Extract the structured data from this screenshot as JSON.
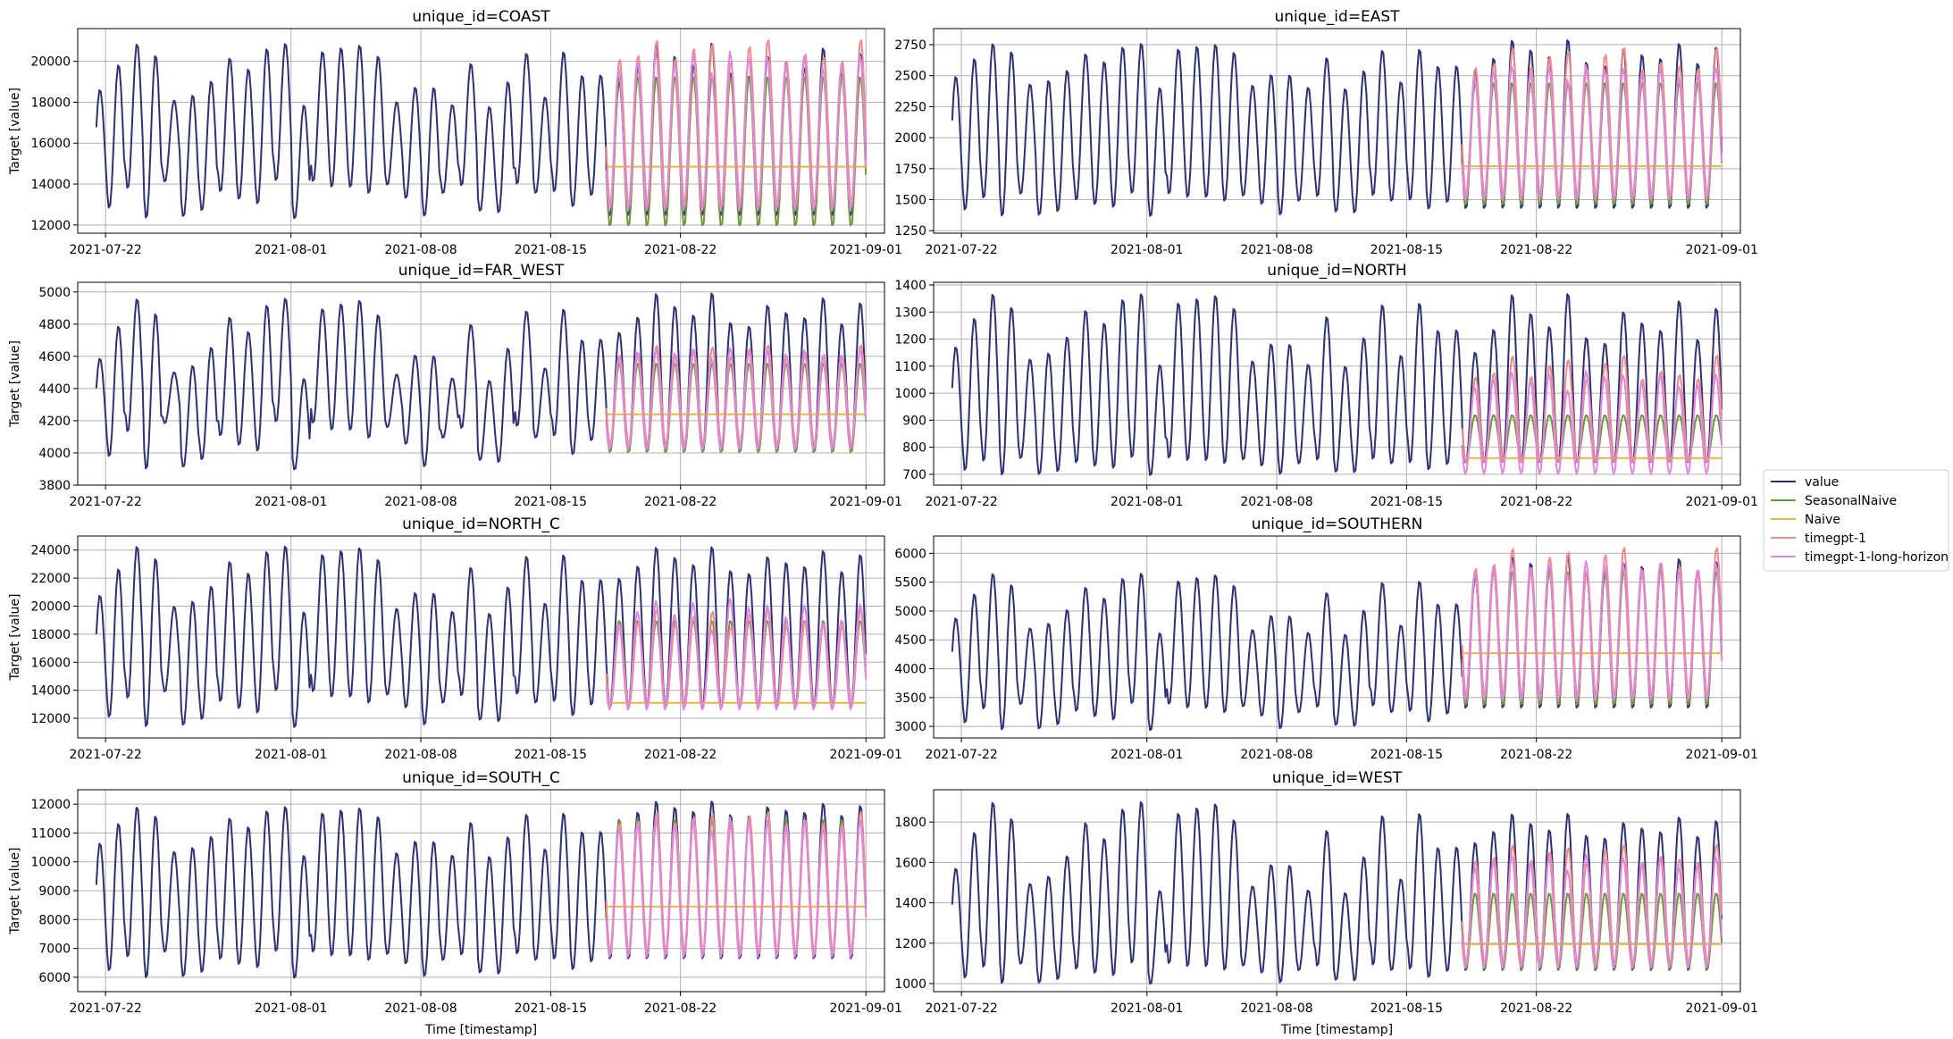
{
  "figure": {
    "xlabel": "Time [timestamp]",
    "ylabel": "Target [value]"
  },
  "legend": {
    "placement": "right",
    "entries": [
      {
        "name": "value",
        "color": "#2e3272"
      },
      {
        "name": "SeasonalNaive",
        "color": "#6e963a"
      },
      {
        "name": "Naive",
        "color": "#e5b842"
      },
      {
        "name": "timegpt-1",
        "color": "#ec8c8c"
      },
      {
        "name": "timegpt-1-long-horizon",
        "color": "#dd88dc"
      }
    ]
  },
  "chart_data": [
    {
      "type": "line",
      "title": "unique_id=COAST",
      "xticks": [
        "2021-07-22",
        "2021-08-01",
        "2021-08-08",
        "2021-08-15",
        "2021-08-22",
        "2021-09-01"
      ],
      "yticks": [
        12000,
        14000,
        16000,
        18000,
        20000
      ],
      "ylim": [
        11600,
        21600
      ],
      "grid": true,
      "history": {
        "start": "2021-07-21",
        "end": "2021-08-18",
        "troughs_range": [
          12200,
          14200
        ],
        "peaks_range": [
          17800,
          21000
        ]
      },
      "forecast": {
        "start": "2021-08-18",
        "end": "2021-09-01",
        "value": {
          "troughs": 12400,
          "peaks_range": [
            19000,
            21100
          ]
        },
        "SeasonalNaive": {
          "troughs": 11900,
          "peaks": 19300
        },
        "Naive": {
          "level": 14850
        },
        "timegpt-1": {
          "troughs": 12900,
          "peaks_range": [
            20000,
            21200
          ]
        },
        "timegpt-1-long-horizon": {
          "troughs": 12700,
          "peaks_range": [
            19300,
            20600
          ]
        }
      }
    },
    {
      "type": "line",
      "title": "unique_id=EAST",
      "xticks": [
        "2021-07-22",
        "2021-08-01",
        "2021-08-08",
        "2021-08-15",
        "2021-08-22",
        "2021-09-01"
      ],
      "yticks": [
        1250,
        1500,
        1750,
        2000,
        2250,
        2500,
        2750
      ],
      "ylim": [
        1230,
        2880
      ],
      "grid": true,
      "history": {
        "start": "2021-07-21",
        "end": "2021-08-18",
        "troughs_range": [
          1350,
          1550
        ],
        "peaks_range": [
          2400,
          2780
        ]
      },
      "forecast": {
        "start": "2021-08-18",
        "end": "2021-09-01",
        "value": {
          "troughs": 1420,
          "peaks_range": [
            2550,
            2820
          ]
        },
        "SeasonalNaive": {
          "troughs": 1450,
          "peaks": 2450
        },
        "Naive": {
          "level": 1770
        },
        "timegpt-1": {
          "troughs": 1520,
          "peaks_range": [
            2550,
            2750
          ]
        },
        "timegpt-1-long-horizon": {
          "troughs": 1500,
          "peaks_range": [
            2450,
            2600
          ]
        }
      }
    },
    {
      "type": "line",
      "title": "unique_id=FAR_WEST",
      "xticks": [
        "2021-07-22",
        "2021-08-01",
        "2021-08-08",
        "2021-08-15",
        "2021-08-22",
        "2021-09-01"
      ],
      "yticks": [
        3800,
        4000,
        4200,
        4400,
        4600,
        4800,
        5000
      ],
      "ylim": [
        3800,
        5060
      ],
      "grid": true,
      "history": {
        "start": "2021-07-21",
        "end": "2021-08-18",
        "troughs_range": [
          3880,
          4200
        ],
        "peaks_range": [
          4450,
          4980
        ]
      },
      "forecast": {
        "start": "2021-08-18",
        "end": "2021-09-01",
        "value": {
          "troughs": 4000,
          "peaks_range": [
            4750,
            5020
          ]
        },
        "SeasonalNaive": {
          "troughs": 4000,
          "peaks": 4560
        },
        "Naive": {
          "level": 4240
        },
        "timegpt-1": {
          "troughs": 4050,
          "peaks_range": [
            4600,
            4680
          ]
        },
        "timegpt-1-long-horizon": {
          "troughs": 4020,
          "peaks_range": [
            4580,
            4660
          ]
        }
      }
    },
    {
      "type": "line",
      "title": "unique_id=NORTH",
      "xticks": [
        "2021-07-22",
        "2021-08-01",
        "2021-08-08",
        "2021-08-15",
        "2021-08-22",
        "2021-09-01"
      ],
      "yticks": [
        700,
        800,
        900,
        1000,
        1100,
        1200,
        1300,
        1400
      ],
      "ylim": [
        660,
        1410
      ],
      "grid": true,
      "history": {
        "start": "2021-07-21",
        "end": "2021-08-18",
        "troughs_range": [
          690,
          760
        ],
        "peaks_range": [
          1100,
          1380
        ]
      },
      "forecast": {
        "start": "2021-08-18",
        "end": "2021-09-01",
        "value": {
          "troughs": 740,
          "peaks_range": [
            1150,
            1390
          ]
        },
        "SeasonalNaive": {
          "troughs": 750,
          "peaks": 920
        },
        "Naive": {
          "level": 760
        },
        "timegpt-1": {
          "troughs": 740,
          "peaks_range": [
            1050,
            1150
          ]
        },
        "timegpt-1-long-horizon": {
          "troughs": 700,
          "peaks_range": [
            1000,
            1090
          ]
        }
      }
    },
    {
      "type": "line",
      "title": "unique_id=NORTH_C",
      "xticks": [
        "2021-07-22",
        "2021-08-01",
        "2021-08-08",
        "2021-08-15",
        "2021-08-22",
        "2021-09-01"
      ],
      "yticks": [
        12000,
        14000,
        16000,
        18000,
        20000,
        22000,
        24000
      ],
      "ylim": [
        10600,
        25000
      ],
      "grid": true,
      "history": {
        "start": "2021-07-21",
        "end": "2021-08-18",
        "troughs_range": [
          11200,
          14000
        ],
        "peaks_range": [
          19500,
          24500
        ]
      },
      "forecast": {
        "start": "2021-08-18",
        "end": "2021-09-01",
        "value": {
          "troughs": 12800,
          "peaks_range": [
            22000,
            24500
          ]
        },
        "SeasonalNaive": {
          "troughs": 12800,
          "peaks": 19000
        },
        "Naive": {
          "level": 13100
        },
        "timegpt-1": {
          "troughs": 12800,
          "peaks_range": [
            18500,
            20000
          ]
        },
        "timegpt-1-long-horizon": {
          "troughs": 12600,
          "peaks_range": [
            18000,
            20800
          ]
        }
      }
    },
    {
      "type": "line",
      "title": "unique_id=SOUTHERN",
      "xticks": [
        "2021-07-22",
        "2021-08-01",
        "2021-08-08",
        "2021-08-15",
        "2021-08-22",
        "2021-09-01"
      ],
      "yticks": [
        3000,
        3500,
        4000,
        4500,
        5000,
        5500,
        6000
      ],
      "ylim": [
        2800,
        6300
      ],
      "grid": true,
      "history": {
        "start": "2021-07-21",
        "end": "2021-08-18",
        "troughs_range": [
          2900,
          3400
        ],
        "peaks_range": [
          4600,
          5700
        ]
      },
      "forecast": {
        "start": "2021-08-18",
        "end": "2021-09-01",
        "value": {
          "troughs": 3300,
          "peaks_range": [
            5600,
            6000
          ]
        },
        "SeasonalNaive": {
          "troughs": 3350,
          "peaks": 5700
        },
        "Naive": {
          "level": 4270
        },
        "timegpt-1": {
          "troughs": 3500,
          "peaks_range": [
            5700,
            6150
          ]
        },
        "timegpt-1-long-horizon": {
          "troughs": 3450,
          "peaks_range": [
            5600,
            5900
          ]
        }
      }
    },
    {
      "type": "line",
      "title": "unique_id=SOUTH_C",
      "xticks": [
        "2021-07-22",
        "2021-08-01",
        "2021-08-08",
        "2021-08-15",
        "2021-08-22",
        "2021-09-01"
      ],
      "yticks": [
        6000,
        7000,
        8000,
        9000,
        10000,
        11000,
        12000
      ],
      "ylim": [
        5500,
        12500
      ],
      "grid": true,
      "history": {
        "start": "2021-07-21",
        "end": "2021-08-18",
        "troughs_range": [
          5900,
          6900
        ],
        "peaks_range": [
          10200,
          12000
        ]
      },
      "forecast": {
        "start": "2021-08-18",
        "end": "2021-09-01",
        "value": {
          "troughs": 6600,
          "peaks_range": [
            11500,
            12200
          ]
        },
        "SeasonalNaive": {
          "troughs": 6700,
          "peaks": 11500
        },
        "Naive": {
          "level": 8450
        },
        "timegpt-1": {
          "troughs": 6800,
          "peaks_range": [
            11300,
            11800
          ]
        },
        "timegpt-1-long-horizon": {
          "troughs": 6700,
          "peaks_range": [
            11000,
            11600
          ]
        }
      }
    },
    {
      "type": "line",
      "title": "unique_id=WEST",
      "xticks": [
        "2021-07-22",
        "2021-08-01",
        "2021-08-08",
        "2021-08-15",
        "2021-08-22",
        "2021-09-01"
      ],
      "yticks": [
        1000,
        1200,
        1400,
        1600,
        1800
      ],
      "ylim": [
        960,
        1960
      ],
      "grid": true,
      "history": {
        "start": "2021-07-21",
        "end": "2021-08-18",
        "troughs_range": [
          990,
          1100
        ],
        "peaks_range": [
          1450,
          1920
        ]
      },
      "forecast": {
        "start": "2021-08-18",
        "end": "2021-09-01",
        "value": {
          "troughs": 1060,
          "peaks_range": [
            1700,
            1860
          ]
        },
        "SeasonalNaive": {
          "troughs": 1070,
          "peaks": 1450
        },
        "Naive": {
          "level": 1195
        },
        "timegpt-1": {
          "troughs": 1100,
          "peaks_range": [
            1600,
            1700
          ]
        },
        "timegpt-1-long-horizon": {
          "troughs": 1080,
          "peaks_range": [
            1550,
            1650
          ]
        }
      }
    }
  ]
}
